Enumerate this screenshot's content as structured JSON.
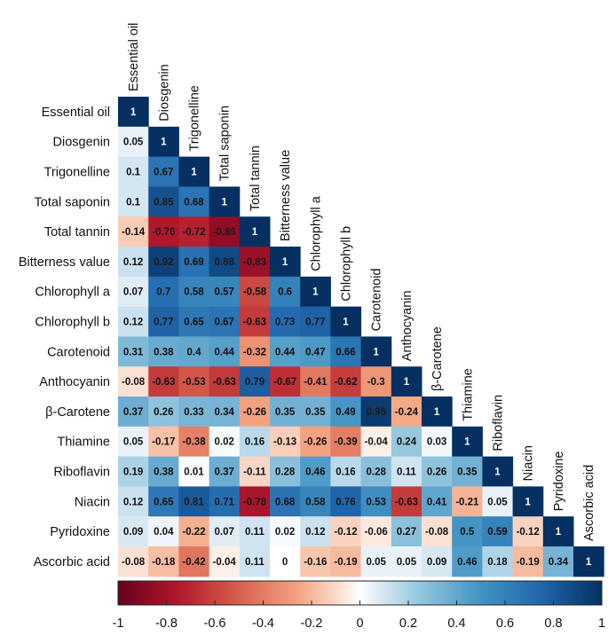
{
  "chart_data": {
    "type": "heatmap",
    "variables": [
      "Essential oil",
      "Diosgenin",
      "Trigonelline",
      "Total saponin",
      "Total tannin",
      "Bitterness value",
      "Chlorophyll a",
      "Chlorophyll b",
      "Carotenoid",
      "Anthocyanin",
      "β-Carotene",
      "Thiamine",
      "Riboflavin",
      "Niacin",
      "Pyridoxine",
      "Ascorbic acid"
    ],
    "matrix": [
      [
        "1"
      ],
      [
        "0.05",
        "1"
      ],
      [
        "0.1",
        "0.67",
        "1"
      ],
      [
        "0.1",
        "0.85",
        "0.68",
        "1"
      ],
      [
        "-0.14",
        "-0.76",
        "-0.72",
        "-0.86",
        "1"
      ],
      [
        "0.12",
        "0.92",
        "0.69",
        "0.88",
        "-0.83",
        "1"
      ],
      [
        "0.07",
        "0.7",
        "0.58",
        "0.57",
        "-0.58",
        "0.6",
        "1"
      ],
      [
        "0.12",
        "0.77",
        "0.65",
        "0.67",
        "-0.63",
        "0.73",
        "0.77",
        "1"
      ],
      [
        "0.31",
        "0.38",
        "0.4",
        "0.44",
        "-0.32",
        "0.44",
        "0.47",
        "0.66",
        "1"
      ],
      [
        "-0.08",
        "-0.63",
        "-0.53",
        "-0.63",
        "0.79",
        "-0.67",
        "-0.41",
        "-0.62",
        "-0.3",
        "1"
      ],
      [
        "0.37",
        "0.26",
        "0.33",
        "0.34",
        "-0.26",
        "0.35",
        "0.35",
        "0.49",
        "0.95",
        "-0.24",
        "1"
      ],
      [
        "0.05",
        "-0.17",
        "-0.38",
        "0.02",
        "0.16",
        "-0.13",
        "-0.26",
        "-0.39",
        "-0.04",
        "0.24",
        "0.03",
        "1"
      ],
      [
        "0.19",
        "0.38",
        "0.01",
        "0.37",
        "-0.11",
        "0.28",
        "0.46",
        "0.16",
        "0.28",
        "0.11",
        "0.26",
        "0.35",
        "1"
      ],
      [
        "0.12",
        "0.65",
        "0.81",
        "0.71",
        "-0.78",
        "0.68",
        "0.58",
        "0.76",
        "0.53",
        "-0.63",
        "0.41",
        "-0.21",
        "0.05",
        "1"
      ],
      [
        "0.09",
        "0.04",
        "-0.22",
        "0.07",
        "0.11",
        "0.02",
        "0.12",
        "-0.12",
        "-0.06",
        "0.27",
        "-0.08",
        "0.5",
        "0.59",
        "-0.12",
        "1"
      ],
      [
        "-0.08",
        "-0.18",
        "-0.42",
        "-0.04",
        "0.11",
        "0",
        "-0.16",
        "-0.19",
        "0.05",
        "0.05",
        "0.09",
        "0.46",
        "0.18",
        "-0.19",
        "0.34",
        "1"
      ]
    ],
    "colorbar": {
      "range": [
        -1,
        1
      ],
      "ticks": [
        "-1",
        "-0.8",
        "-0.6",
        "-0.4",
        "-0.2",
        "0",
        "0.2",
        "0.4",
        "0.6",
        "0.8",
        "1"
      ],
      "negative_color": "#67001f",
      "zero_color": "#ffffff",
      "positive_color": "#053061"
    }
  }
}
